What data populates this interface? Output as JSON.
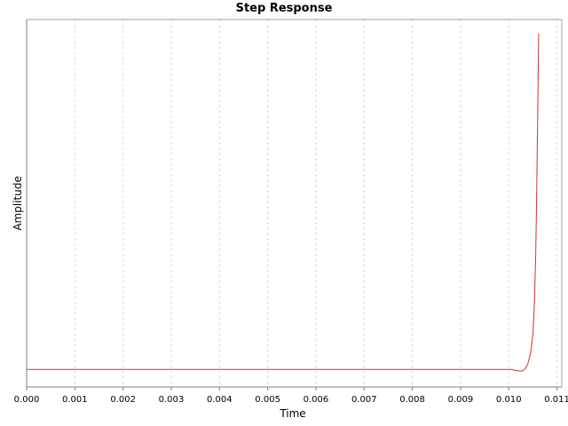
{
  "chart_data": {
    "type": "line",
    "title": "Step Response",
    "xlabel": "Time",
    "ylabel": "Amplitude",
    "xlim": [
      0,
      0.0111
    ],
    "ylim": [
      -0.05,
      1.0
    ],
    "grid": {
      "x": true,
      "y": false
    },
    "x_ticks": [
      "0.000",
      "0.001",
      "0.002",
      "0.003",
      "0.004",
      "0.005",
      "0.006",
      "0.007",
      "0.008",
      "0.009",
      "0.010",
      "0.011"
    ],
    "series": [
      {
        "color": "#cc3333",
        "x": [
          0,
          0.001,
          0.002,
          0.003,
          0.004,
          0.005,
          0.006,
          0.007,
          0.008,
          0.009,
          0.01005,
          0.01015,
          0.01025,
          0.0103,
          0.01035,
          0.0104,
          0.01045,
          0.0105,
          0.01053,
          0.01056,
          0.01058,
          0.0106,
          0.01062
        ],
        "y": [
          0,
          0,
          0,
          0,
          0,
          0,
          0,
          0,
          0,
          0,
          0,
          -0.003,
          -0.005,
          -0.003,
          0.004,
          0.018,
          0.045,
          0.1,
          0.18,
          0.33,
          0.51,
          0.72,
          0.96
        ]
      }
    ]
  }
}
